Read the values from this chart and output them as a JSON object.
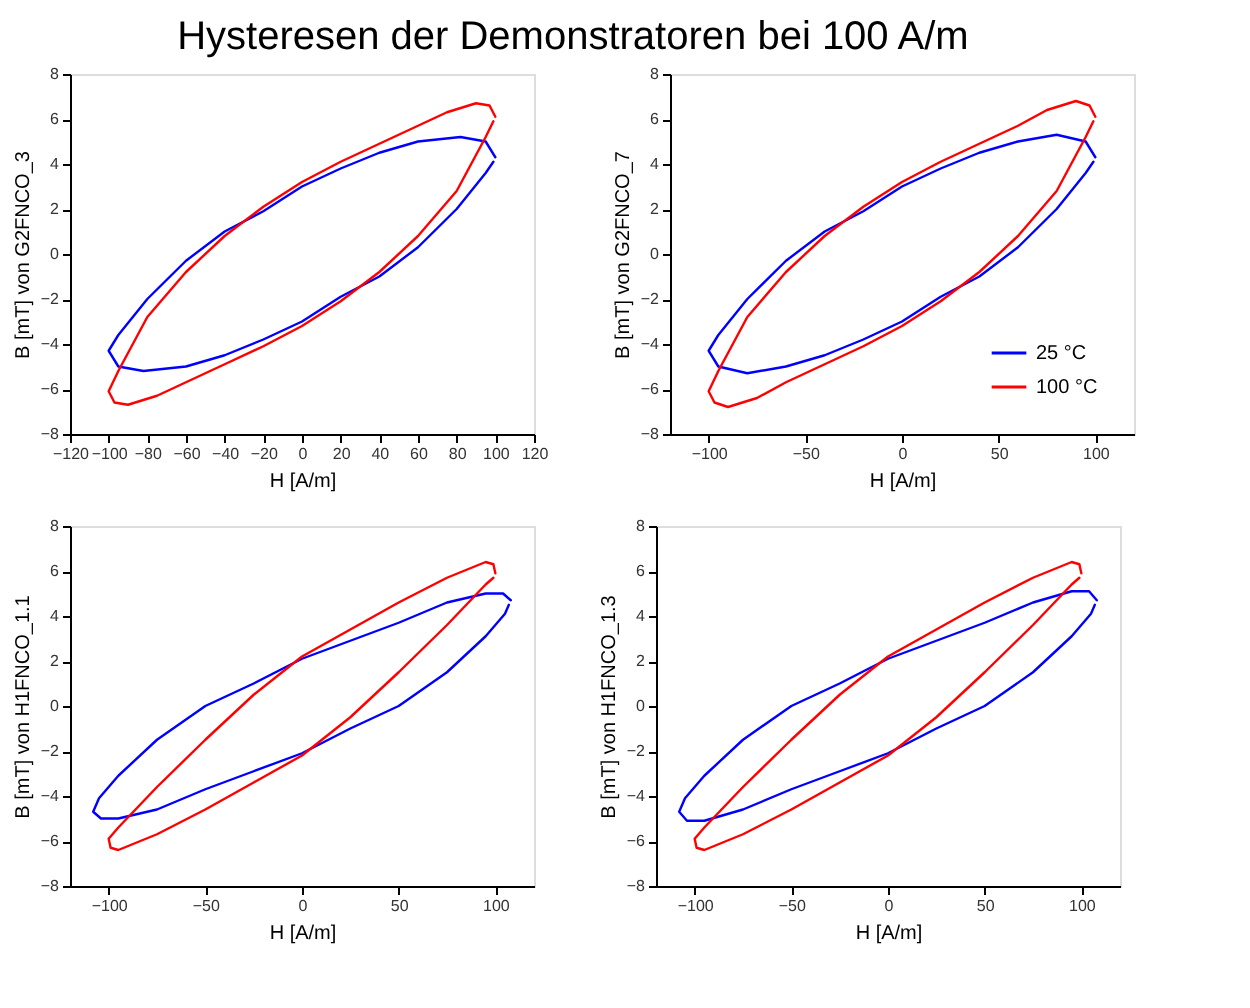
{
  "chart_data": [
    {
      "type": "line",
      "title": "Hysteresen der Demonstratoren bei 100 A/m",
      "xlabel": "H [A/m]",
      "ylabel": "B [mT] von G2FNCO_3",
      "xlim": [
        -120,
        120
      ],
      "xticks": [
        -120,
        -100,
        -80,
        -60,
        -40,
        -20,
        0,
        20,
        40,
        60,
        80,
        100,
        120
      ],
      "ylim": [
        -8,
        8
      ],
      "yticks": [
        -8,
        -6,
        -4,
        -2,
        0,
        2,
        4,
        6,
        8
      ],
      "grid": false,
      "legend": false,
      "marker": "none",
      "line_style": "solid",
      "series": [
        {
          "color": "#0000ff",
          "x": [
            100,
            95,
            82,
            60,
            40,
            20,
            0,
            -20,
            -40,
            -60,
            -80,
            -95,
            -100,
            -95,
            -82,
            -60,
            -40,
            -20,
            0,
            20,
            40,
            60,
            80,
            95,
            99
          ],
          "values": [
            4.3,
            5.0,
            5.2,
            5.0,
            4.5,
            3.8,
            3.0,
            1.9,
            1.0,
            -0.3,
            -2.0,
            -3.6,
            -4.3,
            -5.0,
            -5.2,
            -5.0,
            -4.5,
            -3.8,
            -3.0,
            -1.9,
            -1.0,
            0.3,
            2.0,
            3.6,
            4.1
          ]
        },
        {
          "color": "#ff0000",
          "x": [
            100,
            97,
            90,
            75,
            60,
            40,
            20,
            0,
            -20,
            -40,
            -60,
            -80,
            -95,
            -100,
            -97,
            -90,
            -75,
            -60,
            -40,
            -20,
            0,
            20,
            40,
            60,
            80,
            95,
            99
          ],
          "values": [
            6.1,
            6.6,
            6.7,
            6.3,
            5.7,
            4.9,
            4.1,
            3.2,
            2.1,
            0.8,
            -0.8,
            -2.8,
            -5.2,
            -6.1,
            -6.6,
            -6.7,
            -6.3,
            -5.7,
            -4.9,
            -4.1,
            -3.2,
            -2.1,
            -0.8,
            0.8,
            2.8,
            5.2,
            5.9
          ]
        }
      ]
    },
    {
      "type": "line",
      "xlabel": "H [A/m]",
      "ylabel": "B [mT] von G2FNCO_7",
      "xlim": [
        -120,
        120
      ],
      "xticks": [
        -100,
        -50,
        0,
        50,
        100
      ],
      "ylim": [
        -8,
        8
      ],
      "yticks": [
        -8,
        -6,
        -4,
        -2,
        0,
        2,
        4,
        6,
        8
      ],
      "grid": false,
      "legend": "bottom right",
      "marker": "none",
      "line_style": "solid",
      "series": [
        {
          "name": "25 °C",
          "color": "#0000ff",
          "x": [
            100,
            95,
            80,
            60,
            40,
            20,
            0,
            -20,
            -40,
            -60,
            -80,
            -95,
            -100,
            -95,
            -80,
            -60,
            -40,
            -20,
            0,
            20,
            40,
            60,
            80,
            95,
            99
          ],
          "values": [
            4.3,
            5.0,
            5.3,
            5.0,
            4.5,
            3.8,
            3.0,
            1.9,
            1.0,
            -0.3,
            -2.0,
            -3.6,
            -4.3,
            -5.0,
            -5.3,
            -5.0,
            -4.5,
            -3.8,
            -3.0,
            -1.9,
            -1.0,
            0.3,
            2.0,
            3.6,
            4.1
          ]
        },
        {
          "name": "100 °C",
          "color": "#ff0000",
          "x": [
            100,
            97,
            90,
            75,
            60,
            40,
            20,
            0,
            -20,
            -40,
            -60,
            -80,
            -95,
            -100,
            -97,
            -90,
            -75,
            -60,
            -40,
            -20,
            0,
            20,
            40,
            60,
            80,
            95,
            99
          ],
          "values": [
            6.1,
            6.6,
            6.8,
            6.4,
            5.7,
            4.9,
            4.1,
            3.2,
            2.1,
            0.8,
            -0.8,
            -2.8,
            -5.2,
            -6.1,
            -6.6,
            -6.8,
            -6.4,
            -5.7,
            -4.9,
            -4.1,
            -3.2,
            -2.1,
            -0.8,
            0.8,
            2.8,
            5.2,
            5.9
          ]
        }
      ]
    },
    {
      "type": "line",
      "xlabel": "H [A/m]",
      "ylabel": "B [mT] von H1FNCO_1.1",
      "xlim": [
        -120,
        120
      ],
      "xticks": [
        -100,
        -50,
        0,
        50,
        100
      ],
      "ylim": [
        -8,
        8
      ],
      "yticks": [
        -8,
        -6,
        -4,
        -2,
        0,
        2,
        4,
        6,
        8
      ],
      "grid": false,
      "legend": false,
      "marker": "none",
      "line_style": "solid",
      "series": [
        {
          "color": "#0000ff",
          "x": [
            108,
            104,
            95,
            75,
            50,
            25,
            0,
            -25,
            -50,
            -75,
            -95,
            -105,
            -108,
            -104,
            -95,
            -75,
            -50,
            -25,
            0,
            25,
            50,
            75,
            95,
            105,
            107
          ],
          "values": [
            4.7,
            5.0,
            5.0,
            4.6,
            3.7,
            2.9,
            2.1,
            1.0,
            0.0,
            -1.5,
            -3.1,
            -4.1,
            -4.7,
            -5.0,
            -5.0,
            -4.6,
            -3.7,
            -2.9,
            -2.1,
            -1.0,
            0.0,
            1.5,
            3.1,
            4.1,
            4.5
          ]
        },
        {
          "color": "#ff0000",
          "x": [
            100,
            99,
            95,
            75,
            50,
            25,
            0,
            -25,
            -50,
            -75,
            -95,
            -100,
            -99,
            -95,
            -75,
            -50,
            -25,
            0,
            25,
            50,
            75,
            95,
            99
          ],
          "values": [
            5.9,
            6.3,
            6.4,
            5.7,
            4.6,
            3.4,
            2.2,
            0.5,
            -1.5,
            -3.6,
            -5.4,
            -5.9,
            -6.3,
            -6.4,
            -5.7,
            -4.6,
            -3.4,
            -2.2,
            -0.5,
            1.5,
            3.6,
            5.4,
            5.7
          ]
        }
      ]
    },
    {
      "type": "line",
      "xlabel": "H [A/m]",
      "ylabel": "B [mT] von H1FNCO_1.3",
      "xlim": [
        -120,
        120
      ],
      "xticks": [
        -100,
        -50,
        0,
        50,
        100
      ],
      "ylim": [
        -8,
        8
      ],
      "yticks": [
        -8,
        -6,
        -4,
        -2,
        0,
        2,
        4,
        6,
        8
      ],
      "grid": false,
      "legend": false,
      "marker": "none",
      "line_style": "solid",
      "series": [
        {
          "color": "#0000ff",
          "x": [
            108,
            104,
            95,
            75,
            50,
            25,
            0,
            -25,
            -50,
            -75,
            -95,
            -105,
            -108,
            -104,
            -95,
            -75,
            -50,
            -25,
            0,
            25,
            50,
            75,
            95,
            105,
            107
          ],
          "values": [
            4.7,
            5.1,
            5.1,
            4.6,
            3.7,
            2.9,
            2.1,
            1.0,
            0.0,
            -1.5,
            -3.1,
            -4.1,
            -4.7,
            -5.1,
            -5.1,
            -4.6,
            -3.7,
            -2.9,
            -2.1,
            -1.0,
            0.0,
            1.5,
            3.1,
            4.1,
            4.5
          ]
        },
        {
          "color": "#ff0000",
          "x": [
            100,
            99,
            95,
            75,
            50,
            25,
            0,
            -25,
            -50,
            -75,
            -95,
            -100,
            -99,
            -95,
            -75,
            -50,
            -25,
            0,
            25,
            50,
            75,
            95,
            99
          ],
          "values": [
            5.9,
            6.3,
            6.4,
            5.7,
            4.6,
            3.4,
            2.2,
            0.5,
            -1.5,
            -3.6,
            -5.4,
            -5.9,
            -6.3,
            -6.4,
            -5.7,
            -4.6,
            -3.4,
            -2.2,
            -0.5,
            1.5,
            3.6,
            5.4,
            5.7
          ]
        }
      ]
    }
  ]
}
